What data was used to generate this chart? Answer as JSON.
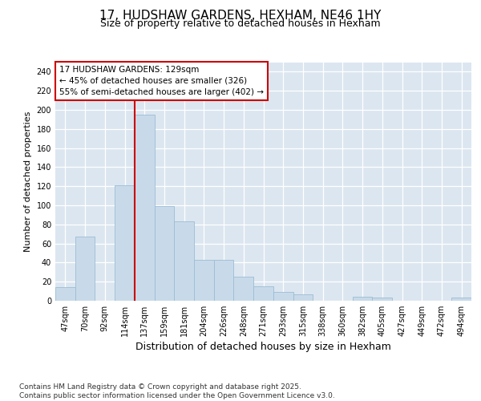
{
  "title": "17, HUDSHAW GARDENS, HEXHAM, NE46 1HY",
  "subtitle": "Size of property relative to detached houses in Hexham",
  "xlabel": "Distribution of detached houses by size in Hexham",
  "ylabel": "Number of detached properties",
  "categories": [
    "47sqm",
    "70sqm",
    "92sqm",
    "114sqm",
    "137sqm",
    "159sqm",
    "181sqm",
    "204sqm",
    "226sqm",
    "248sqm",
    "271sqm",
    "293sqm",
    "315sqm",
    "338sqm",
    "360sqm",
    "382sqm",
    "405sqm",
    "427sqm",
    "449sqm",
    "472sqm",
    "494sqm"
  ],
  "values": [
    14,
    67,
    0,
    121,
    195,
    99,
    83,
    43,
    43,
    25,
    15,
    9,
    7,
    0,
    0,
    4,
    3,
    0,
    0,
    0,
    3
  ],
  "bar_color": "#c8daea",
  "bar_edge_color": "#9bbdd4",
  "plot_bg_color": "#dce6f0",
  "fig_bg_color": "#ffffff",
  "grid_color": "#ffffff",
  "vline_color": "#cc0000",
  "vline_x_index": 4,
  "annotation_text": "17 HUDSHAW GARDENS: 129sqm\n← 45% of detached houses are smaller (326)\n55% of semi-detached houses are larger (402) →",
  "annotation_box_facecolor": "#ffffff",
  "annotation_box_edgecolor": "#cc0000",
  "footer_text": "Contains HM Land Registry data © Crown copyright and database right 2025.\nContains public sector information licensed under the Open Government Licence v3.0.",
  "ylim": [
    0,
    250
  ],
  "yticks": [
    0,
    20,
    40,
    60,
    80,
    100,
    120,
    140,
    160,
    180,
    200,
    220,
    240
  ],
  "title_fontsize": 11,
  "subtitle_fontsize": 9,
  "xlabel_fontsize": 9,
  "ylabel_fontsize": 8,
  "tick_fontsize": 7,
  "annotation_fontsize": 7.5,
  "footer_fontsize": 6.5
}
